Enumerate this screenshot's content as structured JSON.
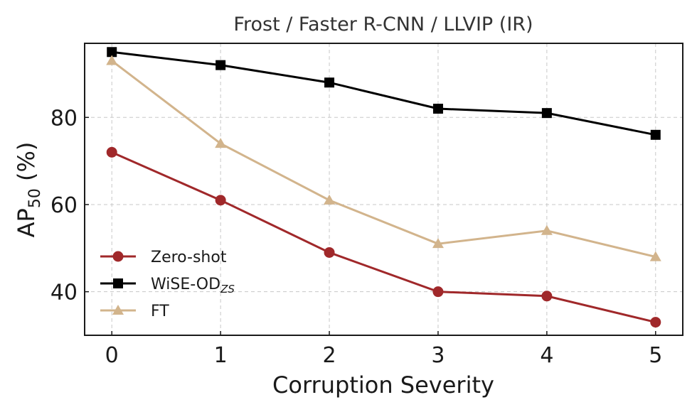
{
  "chart_data": {
    "type": "line",
    "title": "Frost / Faster R-CNN / LLVIP (IR)",
    "xlabel": "Corruption Severity",
    "ylabel": "AP",
    "ylabel_sub": "50",
    "ylabel_suffix": " (%)",
    "x": [
      0,
      1,
      2,
      3,
      4,
      5
    ],
    "x_ticks": [
      "0",
      "1",
      "2",
      "3",
      "4",
      "5"
    ],
    "y_ticks": [
      "40",
      "60",
      "80"
    ],
    "y_tick_values": [
      40,
      60,
      80
    ],
    "xlim": [
      -0.25,
      5.25
    ],
    "ylim": [
      30,
      97
    ],
    "grid": true,
    "legend_position": "lower-left",
    "series": [
      {
        "name": "Zero-shot",
        "name_sub": "",
        "values": [
          72,
          61,
          49,
          40,
          39,
          33
        ],
        "color": "#a0282a",
        "marker": "circle"
      },
      {
        "name": "WiSE-OD",
        "name_sub": "ZS",
        "values": [
          95,
          92,
          88,
          82,
          81,
          76
        ],
        "color": "#000000",
        "marker": "square"
      },
      {
        "name": "FT",
        "name_sub": "",
        "values": [
          93,
          74,
          61,
          51,
          54,
          48
        ],
        "color": "#d2b48c",
        "marker": "triangle"
      }
    ]
  }
}
